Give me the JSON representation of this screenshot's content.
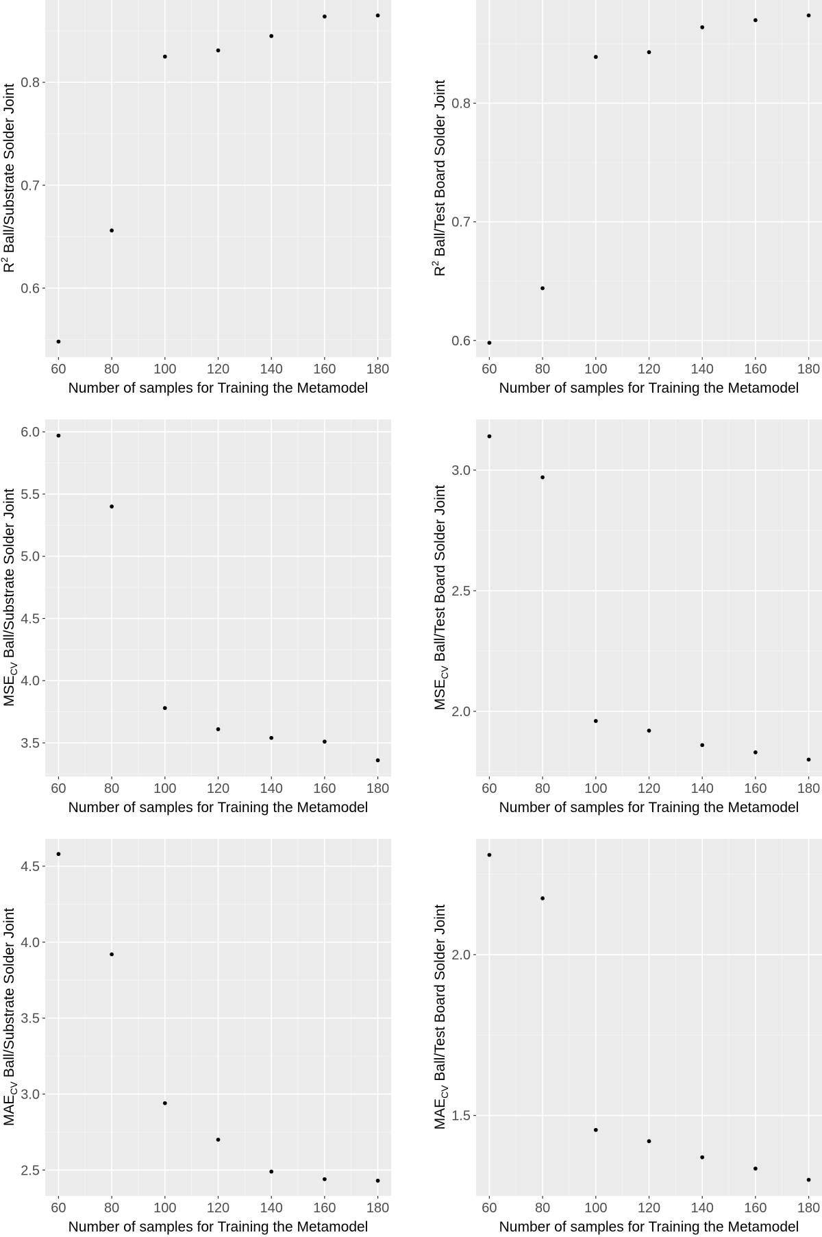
{
  "chart_data": [
    {
      "type": "scatter",
      "title": "",
      "xlabel": "Number of samples for Training the Metamodel",
      "ylabel_prefix": "R",
      "ylabel_sup": "2",
      "ylabel_sub": "",
      "ylabel_rest": " Ball/Substrate Solder Joint",
      "x": [
        60,
        80,
        100,
        120,
        140,
        160,
        180
      ],
      "y": [
        0.548,
        0.656,
        0.825,
        0.831,
        0.845,
        0.864,
        0.865
      ],
      "xlim": [
        55,
        185
      ],
      "ylim": [
        0.533,
        0.88
      ],
      "xticks": [
        60,
        80,
        100,
        120,
        140,
        160,
        180
      ],
      "xtick_labels": [
        "60",
        "80",
        "100",
        "120",
        "140",
        "160",
        "180"
      ],
      "yticks": [
        0.6,
        0.7,
        0.8
      ],
      "ytick_labels": [
        "0.6",
        "0.7",
        "0.8"
      ],
      "yminor": [
        0.55,
        0.65,
        0.75,
        0.85
      ],
      "grid": true
    },
    {
      "type": "scatter",
      "title": "",
      "xlabel": "Number of samples for Training the Metamodel",
      "ylabel_prefix": "R",
      "ylabel_sup": "2",
      "ylabel_sub": "",
      "ylabel_rest": " Ball/Test Board Solder Joint",
      "x": [
        60,
        80,
        100,
        120,
        140,
        160,
        180
      ],
      "y": [
        0.598,
        0.644,
        0.839,
        0.843,
        0.864,
        0.87,
        0.874
      ],
      "xlim": [
        55,
        185
      ],
      "ylim": [
        0.586,
        0.887
      ],
      "xticks": [
        60,
        80,
        100,
        120,
        140,
        160,
        180
      ],
      "xtick_labels": [
        "60",
        "80",
        "100",
        "120",
        "140",
        "160",
        "180"
      ],
      "yticks": [
        0.6,
        0.7,
        0.8
      ],
      "ytick_labels": [
        "0.6",
        "0.7",
        "0.8"
      ],
      "yminor": [
        0.65,
        0.75,
        0.85
      ],
      "grid": true
    },
    {
      "type": "scatter",
      "title": "",
      "xlabel": "Number of samples for Training the Metamodel",
      "ylabel_prefix": "MSE",
      "ylabel_sup": "",
      "ylabel_sub": "CV",
      "ylabel_rest": " Ball/Substrate Solder Joint",
      "x": [
        60,
        80,
        100,
        120,
        140,
        160,
        180
      ],
      "y": [
        5.97,
        5.4,
        3.78,
        3.61,
        3.54,
        3.51,
        3.36
      ],
      "xlim": [
        55,
        185
      ],
      "ylim": [
        3.23,
        6.1
      ],
      "xticks": [
        60,
        80,
        100,
        120,
        140,
        160,
        180
      ],
      "xtick_labels": [
        "60",
        "80",
        "100",
        "120",
        "140",
        "160",
        "180"
      ],
      "yticks": [
        3.5,
        4.0,
        4.5,
        5.0,
        5.5,
        6.0
      ],
      "ytick_labels": [
        "3.5",
        "4.0",
        "4.5",
        "5.0",
        "5.5",
        "6.0"
      ],
      "yminor": [
        3.25,
        3.75,
        4.25,
        4.75,
        5.25,
        5.75
      ],
      "grid": true
    },
    {
      "type": "scatter",
      "title": "",
      "xlabel": "Number of samples for Training the Metamodel",
      "ylabel_prefix": "MSE",
      "ylabel_sup": "",
      "ylabel_sub": "CV",
      "ylabel_rest": " Ball/Test Board Solder Joint",
      "x": [
        60,
        80,
        100,
        120,
        140,
        160,
        180
      ],
      "y": [
        3.14,
        2.97,
        1.96,
        1.92,
        1.86,
        1.83,
        1.8
      ],
      "xlim": [
        55,
        185
      ],
      "ylim": [
        1.73,
        3.21
      ],
      "xticks": [
        60,
        80,
        100,
        120,
        140,
        160,
        180
      ],
      "xtick_labels": [
        "60",
        "80",
        "100",
        "120",
        "140",
        "160",
        "180"
      ],
      "yticks": [
        2.0,
        2.5,
        3.0
      ],
      "ytick_labels": [
        "2.0",
        "2.5",
        "3.0"
      ],
      "yminor": [
        1.75,
        2.25,
        2.75
      ],
      "grid": true
    },
    {
      "type": "scatter",
      "title": "",
      "xlabel": "Number of samples for Training the Metamodel",
      "ylabel_prefix": "MAE",
      "ylabel_sup": "",
      "ylabel_sub": "CV",
      "ylabel_rest": " Ball/Substrate Solder Joint",
      "x": [
        60,
        80,
        100,
        120,
        140,
        160,
        180
      ],
      "y": [
        4.58,
        3.92,
        2.94,
        2.7,
        2.49,
        2.44,
        2.43
      ],
      "xlim": [
        55,
        185
      ],
      "ylim": [
        2.33,
        4.68
      ],
      "xticks": [
        60,
        80,
        100,
        120,
        140,
        160,
        180
      ],
      "xtick_labels": [
        "60",
        "80",
        "100",
        "120",
        "140",
        "160",
        "180"
      ],
      "yticks": [
        2.5,
        3.0,
        3.5,
        4.0,
        4.5
      ],
      "ytick_labels": [
        "2.5",
        "3.0",
        "3.5",
        "4.0",
        "4.5"
      ],
      "yminor": [
        2.75,
        3.25,
        3.75,
        4.25
      ],
      "grid": true
    },
    {
      "type": "scatter",
      "title": "",
      "xlabel": "Number of samples for Training the Metamodel",
      "ylabel_prefix": "MAE",
      "ylabel_sup": "",
      "ylabel_sub": "CV",
      "ylabel_rest": " Ball/Test Board Solder Joint",
      "x": [
        60,
        80,
        100,
        120,
        140,
        160,
        180
      ],
      "y": [
        2.31,
        2.175,
        1.455,
        1.42,
        1.37,
        1.335,
        1.3
      ],
      "xlim": [
        55,
        185
      ],
      "ylim": [
        1.25,
        2.36
      ],
      "xticks": [
        60,
        80,
        100,
        120,
        140,
        160,
        180
      ],
      "xtick_labels": [
        "60",
        "80",
        "100",
        "120",
        "140",
        "160",
        "180"
      ],
      "yticks": [
        1.5,
        2.0
      ],
      "ytick_labels": [
        "1.5",
        "2.0"
      ],
      "yminor": [
        1.25,
        1.75,
        2.25
      ],
      "grid": true
    }
  ]
}
